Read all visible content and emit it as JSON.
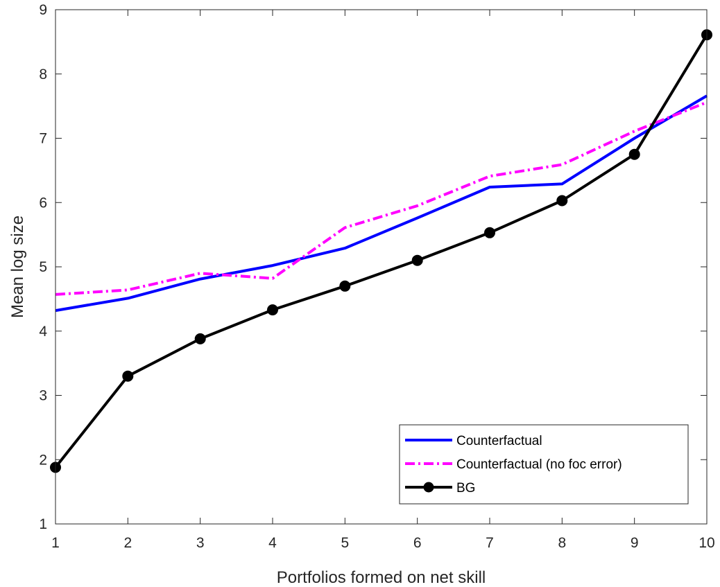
{
  "chart_data": {
    "type": "line",
    "xlabel": "Portfolios formed on net skill",
    "ylabel": "Mean log size",
    "x": [
      1,
      2,
      3,
      4,
      5,
      6,
      7,
      8,
      9,
      10
    ],
    "xlim": [
      1,
      10
    ],
    "ylim": [
      1,
      9
    ],
    "xticks": [
      "1",
      "2",
      "3",
      "4",
      "5",
      "6",
      "7",
      "8",
      "9",
      "10"
    ],
    "yticks": [
      "1",
      "2",
      "3",
      "4",
      "5",
      "6",
      "7",
      "8",
      "9"
    ],
    "grid": false,
    "legend_position": "bottom-right",
    "series": [
      {
        "name": "Counterfactual",
        "color": "#0000ff",
        "style": "solid",
        "marker": "none",
        "values": [
          4.32,
          4.51,
          4.81,
          5.02,
          5.29,
          5.76,
          6.24,
          6.29,
          7.0,
          7.66
        ]
      },
      {
        "name": "Counterfactual (no foc error)",
        "color": "#ff00ff",
        "style": "dashdot",
        "marker": "none",
        "values": [
          4.57,
          4.64,
          4.9,
          4.82,
          5.61,
          5.95,
          6.41,
          6.59,
          7.11,
          7.56
        ]
      },
      {
        "name": "BG",
        "color": "#000000",
        "style": "solid",
        "marker": "circle",
        "values": [
          1.88,
          3.3,
          3.88,
          4.33,
          4.7,
          5.1,
          5.53,
          6.03,
          6.75,
          8.61
        ]
      }
    ]
  }
}
